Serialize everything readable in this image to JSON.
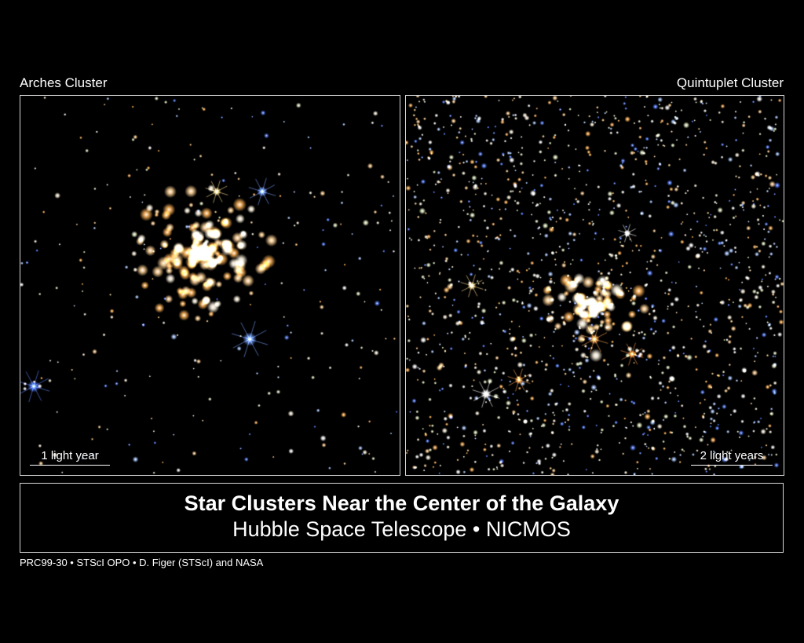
{
  "panels": [
    {
      "name": "Arches Cluster",
      "scale_label": "1 light year"
    },
    {
      "name": "Quintuplet Cluster",
      "scale_label": "2 light years"
    }
  ],
  "caption": {
    "title": "Star Clusters Near the Center of the Galaxy",
    "subtitle": "Hubble Space Telescope • NICMOS"
  },
  "credit": "PRC99-30 • STScI OPO • D. Figer (STScI) and NASA"
}
